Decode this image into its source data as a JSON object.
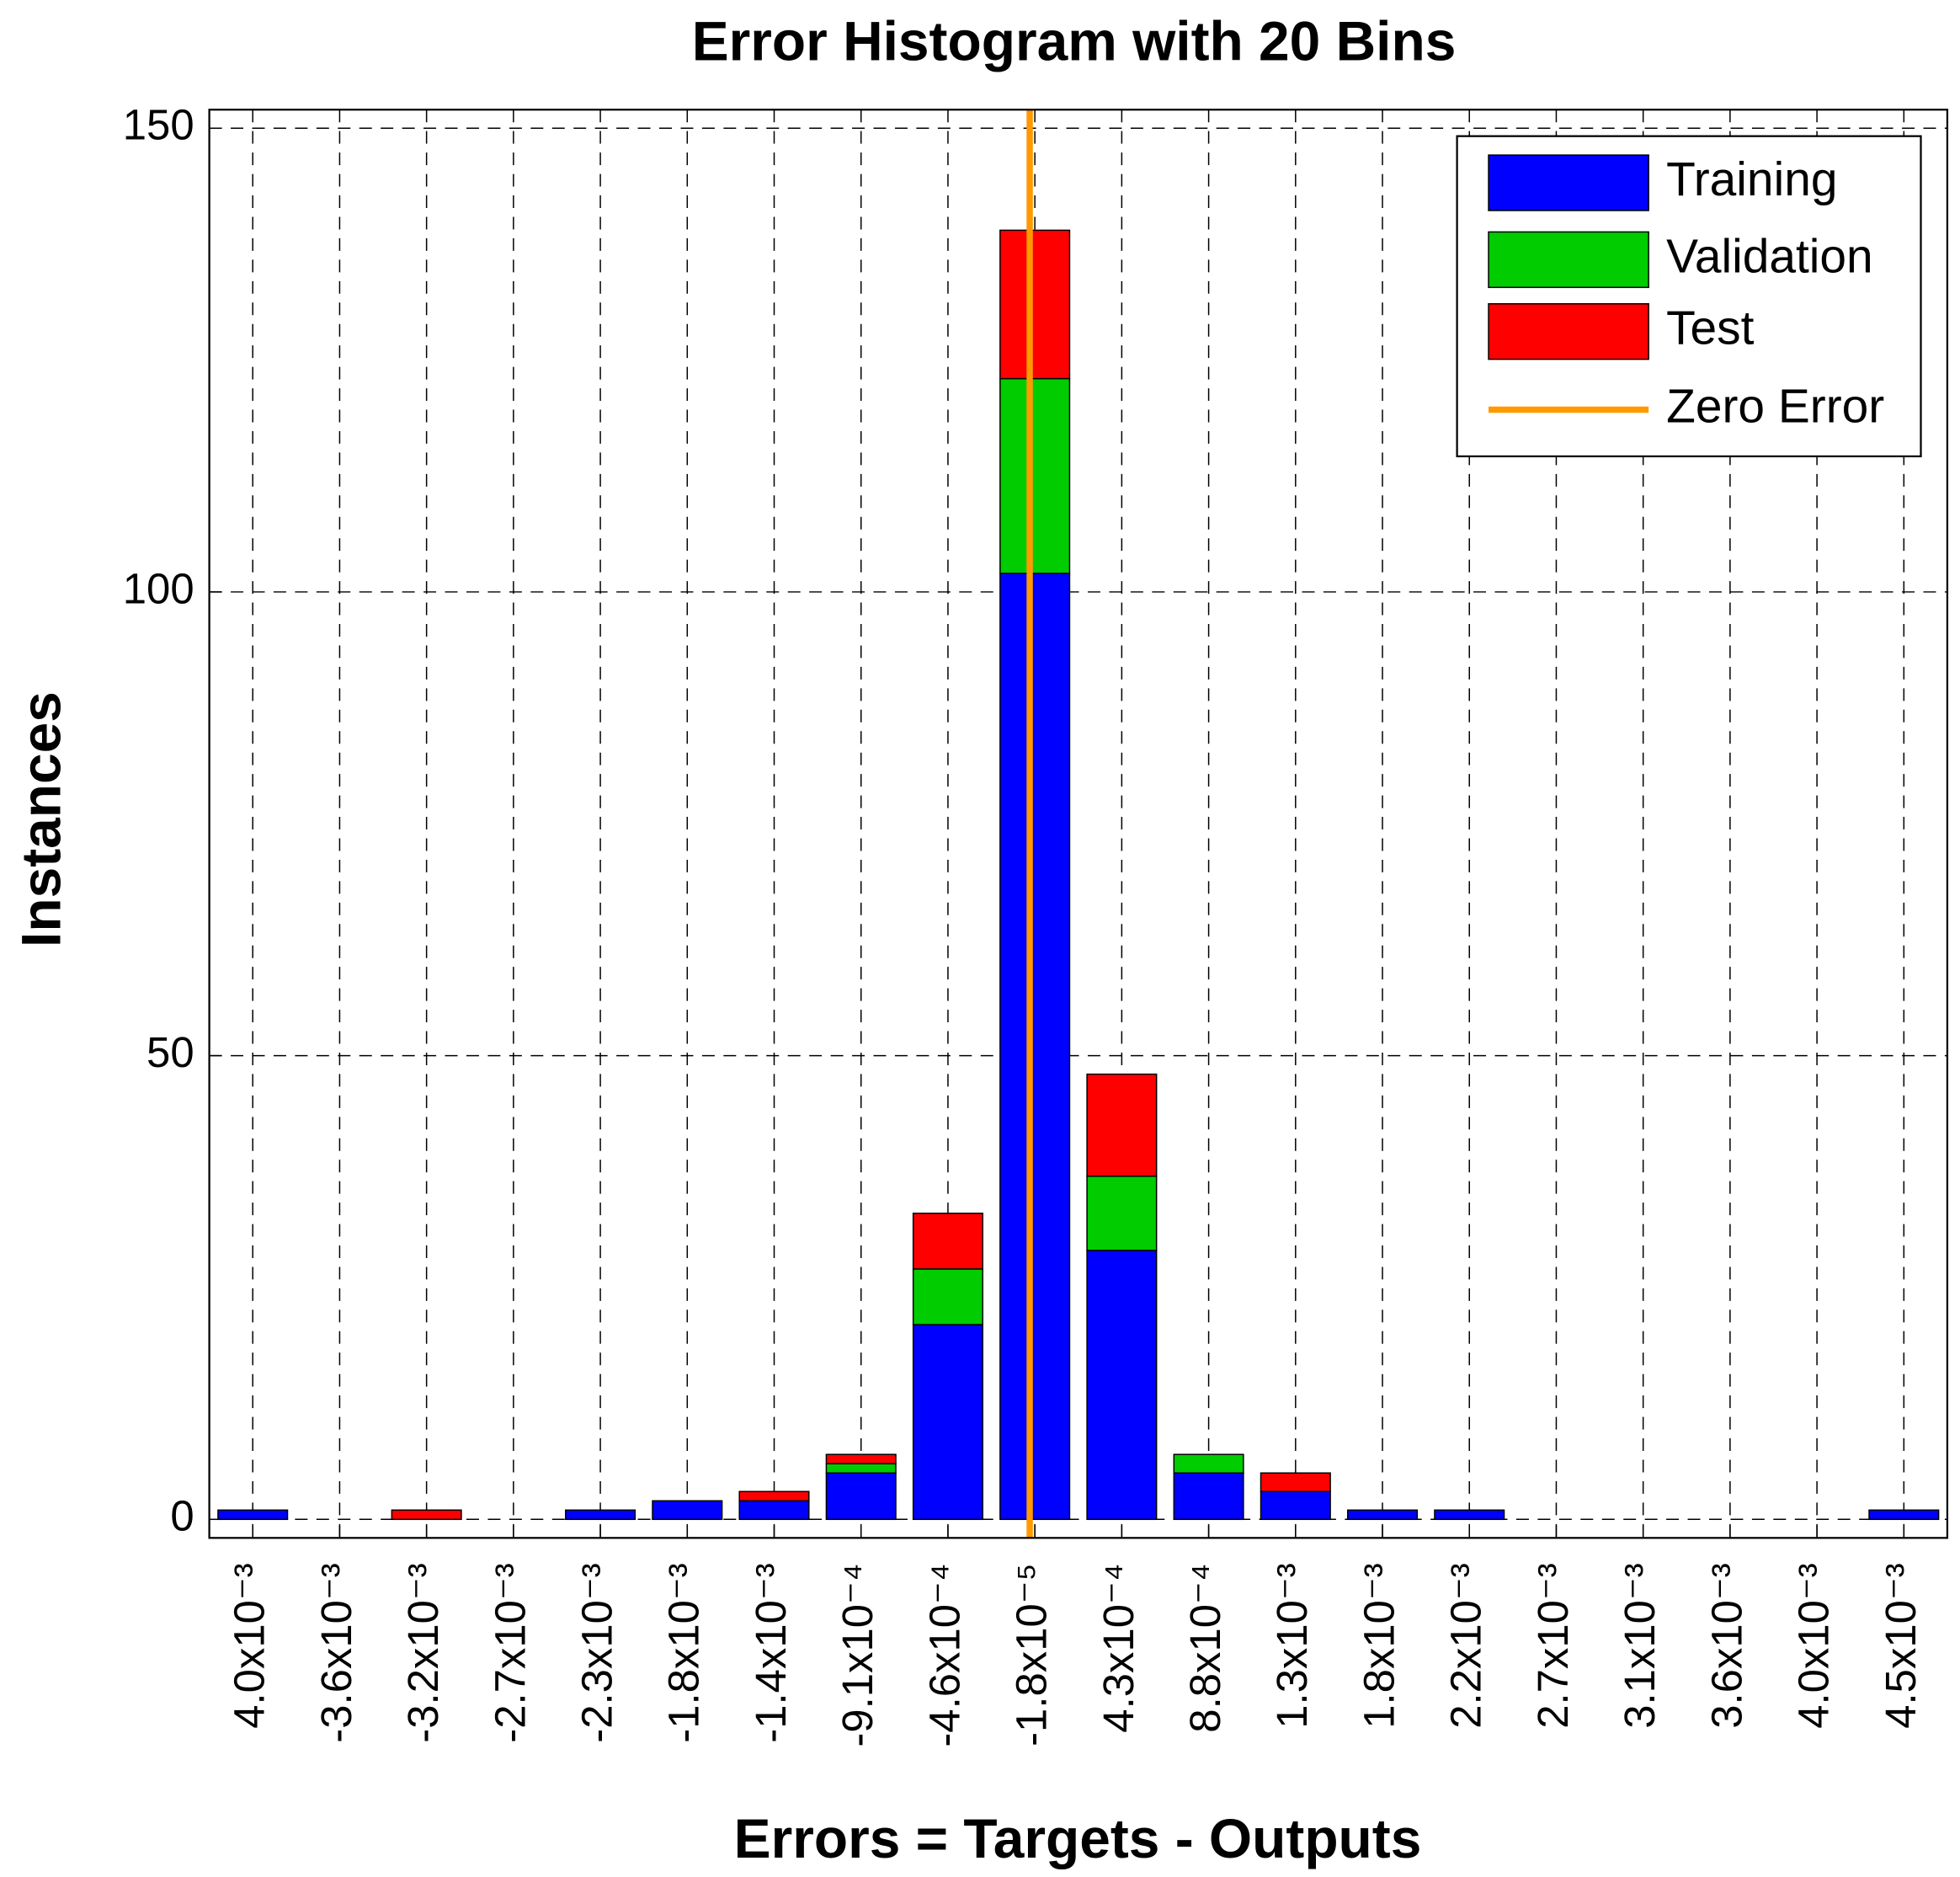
{
  "chart_data": {
    "type": "bar",
    "stacked": true,
    "title": "Error Histogram with 20 Bins",
    "x_label": "Errors = Targets - Outputs",
    "y_label": "Instances",
    "categories": [
      "4.0x10⁻³",
      "-3.6x10⁻³",
      "-3.2x10⁻³",
      "-2.7x10⁻³",
      "-2.3x10⁻³",
      "-1.8x10⁻³",
      "-1.4x10⁻³",
      "-9.1x10⁻⁴",
      "-4.6x10⁻⁴",
      "-1.8x10⁻⁵",
      "4.3x10⁻⁴",
      "8.8x10⁻⁴",
      "1.3x10⁻³",
      "1.8x10⁻³",
      "2.2x10⁻³",
      "2.7x10⁻³",
      "3.1x10⁻³",
      "3.6x10⁻³",
      "4.0x10⁻³",
      "4.5x10⁻³"
    ],
    "series": [
      {
        "name": "Training",
        "color": "#0000ff",
        "values": [
          1,
          0,
          0,
          0,
          1,
          2,
          2,
          5,
          21,
          102,
          29,
          5,
          3,
          1,
          1,
          0,
          0,
          0,
          0,
          1
        ]
      },
      {
        "name": "Validation",
        "color": "#00cc00",
        "values": [
          0,
          0,
          0,
          0,
          0,
          0,
          0,
          1,
          6,
          21,
          8,
          2,
          0,
          0,
          0,
          0,
          0,
          0,
          0,
          0
        ]
      },
      {
        "name": "Test",
        "color": "#ff0000",
        "values": [
          0,
          0,
          1,
          0,
          0,
          0,
          1,
          1,
          6,
          16,
          11,
          0,
          2,
          0,
          0,
          0,
          0,
          0,
          0,
          0
        ]
      }
    ],
    "reference_line": {
      "name": "Zero Error",
      "color": "#ff9900",
      "x": 0
    },
    "xlim": [
      -0.00422,
      0.00472
    ],
    "ylim": [
      -2,
      152
    ],
    "yticks": [
      0,
      50,
      100,
      150
    ],
    "grid": true,
    "legend": "upper right"
  }
}
